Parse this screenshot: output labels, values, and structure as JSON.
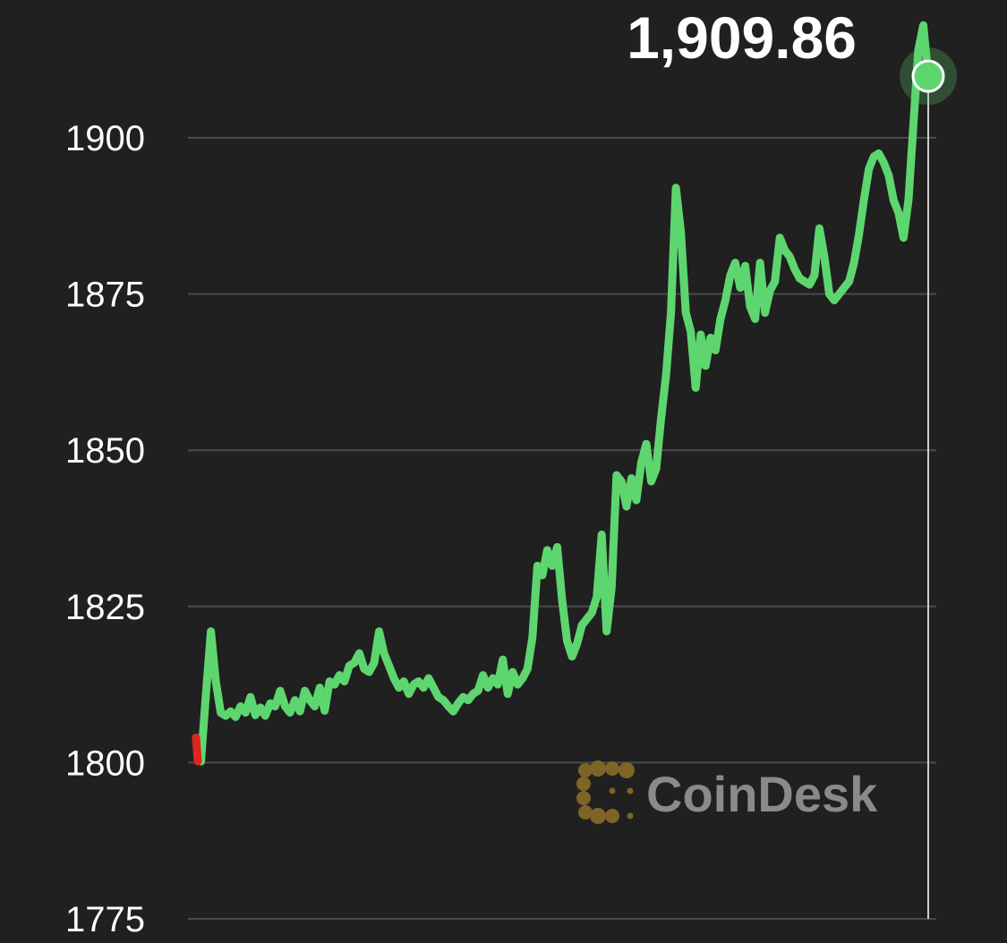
{
  "chart_data": {
    "type": "line",
    "title": "",
    "xlabel": "",
    "ylabel": "",
    "ylim": [
      1775,
      1915
    ],
    "y_ticks": [
      1775,
      1800,
      1825,
      1850,
      1875,
      1900
    ],
    "y_tick_labels": [
      "1775",
      "1800",
      "1825",
      "1850",
      "1875",
      "1900"
    ],
    "grid": "horizontal",
    "current_price_label": "1,909.86",
    "current_price": 1909.86,
    "up_color": "#5ed66f",
    "down_color": "#e0261b",
    "watermark": "CoinDesk",
    "series": [
      {
        "values": [
          1804.0,
          1800.2,
          1811.0,
          1821.0,
          1813.0,
          1808.0,
          1807.5,
          1808.2,
          1807.3,
          1809.0,
          1808.0,
          1810.5,
          1807.6,
          1808.8,
          1807.5,
          1809.5,
          1809.0,
          1811.5,
          1809.0,
          1808.0,
          1810.0,
          1808.2,
          1811.5,
          1810.0,
          1809.0,
          1812.0,
          1808.3,
          1813.0,
          1812.5,
          1814.0,
          1813.0,
          1815.5,
          1816.0,
          1817.5,
          1815.0,
          1814.5,
          1816.0,
          1821.0,
          1817.5,
          1815.5,
          1813.5,
          1812.0,
          1813.0,
          1811.0,
          1812.5,
          1813.0,
          1812.0,
          1813.5,
          1812.0,
          1810.5,
          1810.0,
          1809.0,
          1808.2,
          1809.5,
          1810.5,
          1810.0,
          1811.0,
          1811.5,
          1814.0,
          1812.0,
          1813.5,
          1812.5,
          1816.5,
          1811.0,
          1814.5,
          1812.5,
          1813.5,
          1815.0,
          1820.0,
          1831.5,
          1830.0,
          1834.0,
          1831.5,
          1834.5,
          1826.0,
          1819.5,
          1817.0,
          1819.0,
          1822.0,
          1823.0,
          1824.0,
          1826.5,
          1836.5,
          1821.0,
          1828.0,
          1846.0,
          1845.0,
          1841.0,
          1845.5,
          1842.0,
          1848.0,
          1851.0,
          1845.0,
          1847.0,
          1855.0,
          1862.0,
          1872.0,
          1892.0,
          1885.0,
          1872.0,
          1869.0,
          1860.0,
          1868.5,
          1863.5,
          1868.0,
          1866.0,
          1871.0,
          1874.0,
          1878.0,
          1880.0,
          1876.0,
          1879.5,
          1873.0,
          1871.0,
          1880.0,
          1872.0,
          1875.5,
          1877.0,
          1884.0,
          1882.0,
          1881.0,
          1879.0,
          1877.5,
          1877.0,
          1876.5,
          1878.0,
          1885.5,
          1881.0,
          1875.0,
          1874.0,
          1875.0,
          1876.0,
          1877.0,
          1880.0,
          1884.5,
          1890.0,
          1895.0,
          1897.0,
          1897.5,
          1896.0,
          1894.0,
          1890.0,
          1888.0,
          1884.0,
          1890.0,
          1902.0,
          1914.0,
          1918.0,
          1909.86
        ]
      }
    ]
  }
}
